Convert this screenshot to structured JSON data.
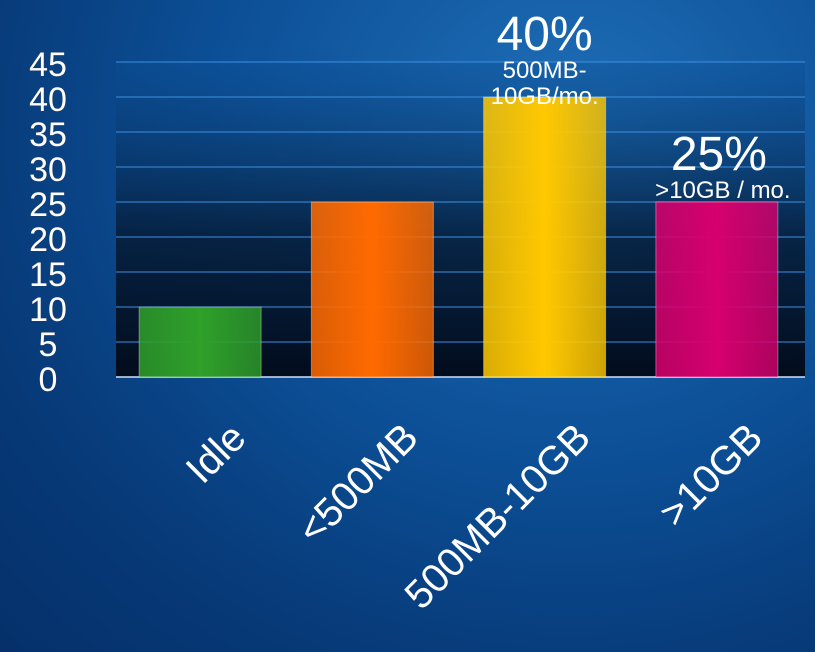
{
  "chart_data": {
    "type": "bar",
    "categories": [
      "Idle",
      "<500MB",
      "500MB-10GB",
      ">10GB"
    ],
    "values": [
      10,
      25,
      40,
      25
    ],
    "colors": [
      "#2fa02a",
      "#ff6a00",
      "#ffc800",
      "#d6006e"
    ],
    "ylim": [
      0,
      45
    ],
    "yticks": [
      "0",
      "5",
      "10",
      "15",
      "20",
      "25",
      "30",
      "35",
      "40",
      "45"
    ],
    "grid": true,
    "annotations": [
      {
        "category": "500MB-10GB",
        "percent": "40%",
        "lines": [
          "500MB-",
          "10GB/mo."
        ]
      },
      {
        "category": ">10GB",
        "percent": "25%",
        "lines": [
          ">10GB / mo."
        ]
      }
    ]
  }
}
